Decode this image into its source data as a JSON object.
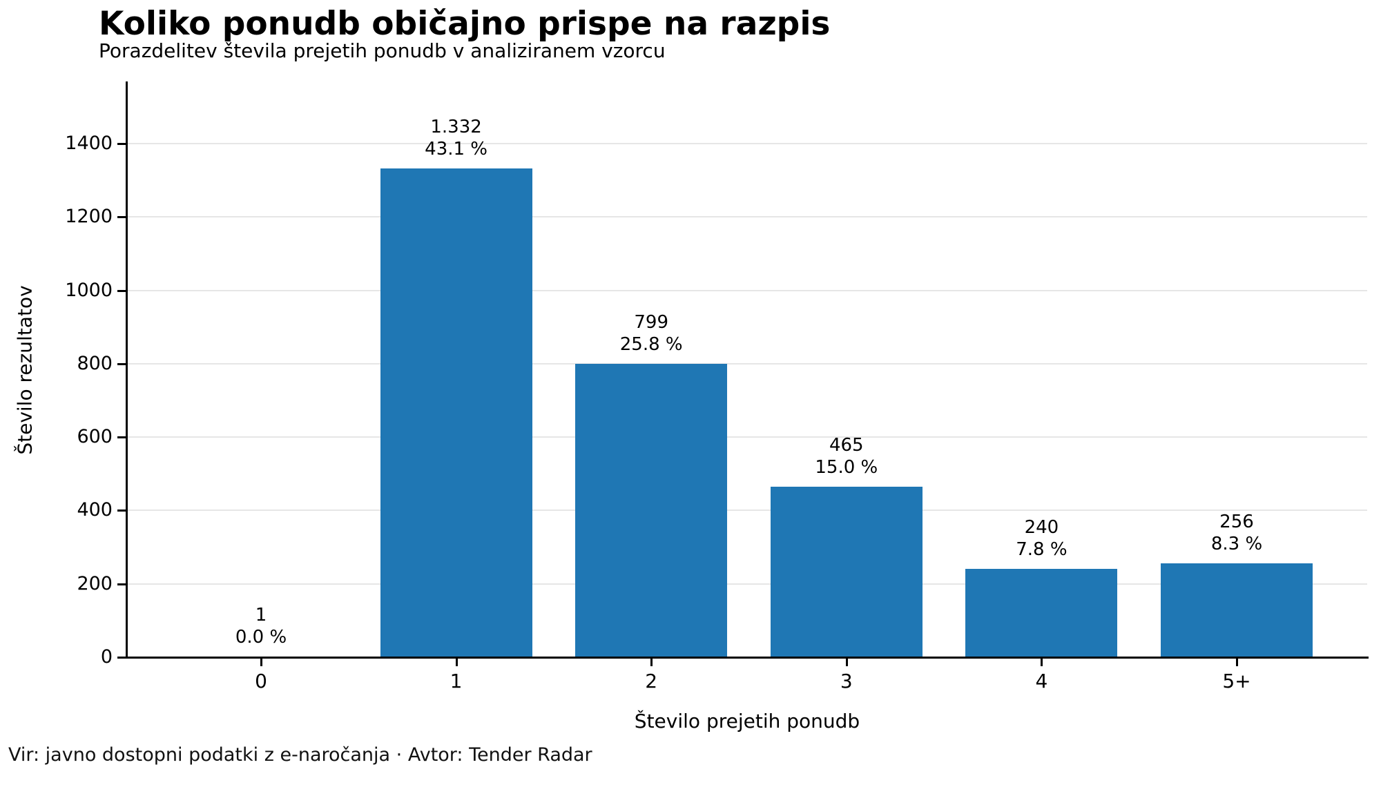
{
  "chart_data": {
    "type": "bar",
    "title": "Koliko ponudb običajno prispe na razpis",
    "subtitle": "Porazdelitev števila prejetih ponudb v analiziranem vzorcu",
    "xlabel": "Število prejetih ponudb",
    "ylabel": "Število rezultatov",
    "categories": [
      "0",
      "1",
      "2",
      "3",
      "4",
      "5+"
    ],
    "values": [
      1,
      1332,
      799,
      465,
      240,
      256
    ],
    "percentages": [
      0.0,
      43.1,
      25.8,
      15.0,
      7.8,
      8.3
    ],
    "bar_labels": [
      {
        "value": "1",
        "pct": "0.0 %"
      },
      {
        "value": "1.332",
        "pct": "43.1 %"
      },
      {
        "value": "799",
        "pct": "25.8 %"
      },
      {
        "value": "465",
        "pct": "15.0 %"
      },
      {
        "value": "240",
        "pct": "7.8 %"
      },
      {
        "value": "256",
        "pct": "8.3 %"
      }
    ],
    "yticks": [
      0,
      200,
      400,
      600,
      800,
      1000,
      1200,
      1400
    ],
    "ylim": [
      0,
      1566
    ],
    "grid": "horizontal",
    "legend": "none",
    "bar_color": "#1f77b4",
    "source_note": "Vir: javno dostopni podatki z e-naročanja · Avtor: Tender Radar"
  }
}
